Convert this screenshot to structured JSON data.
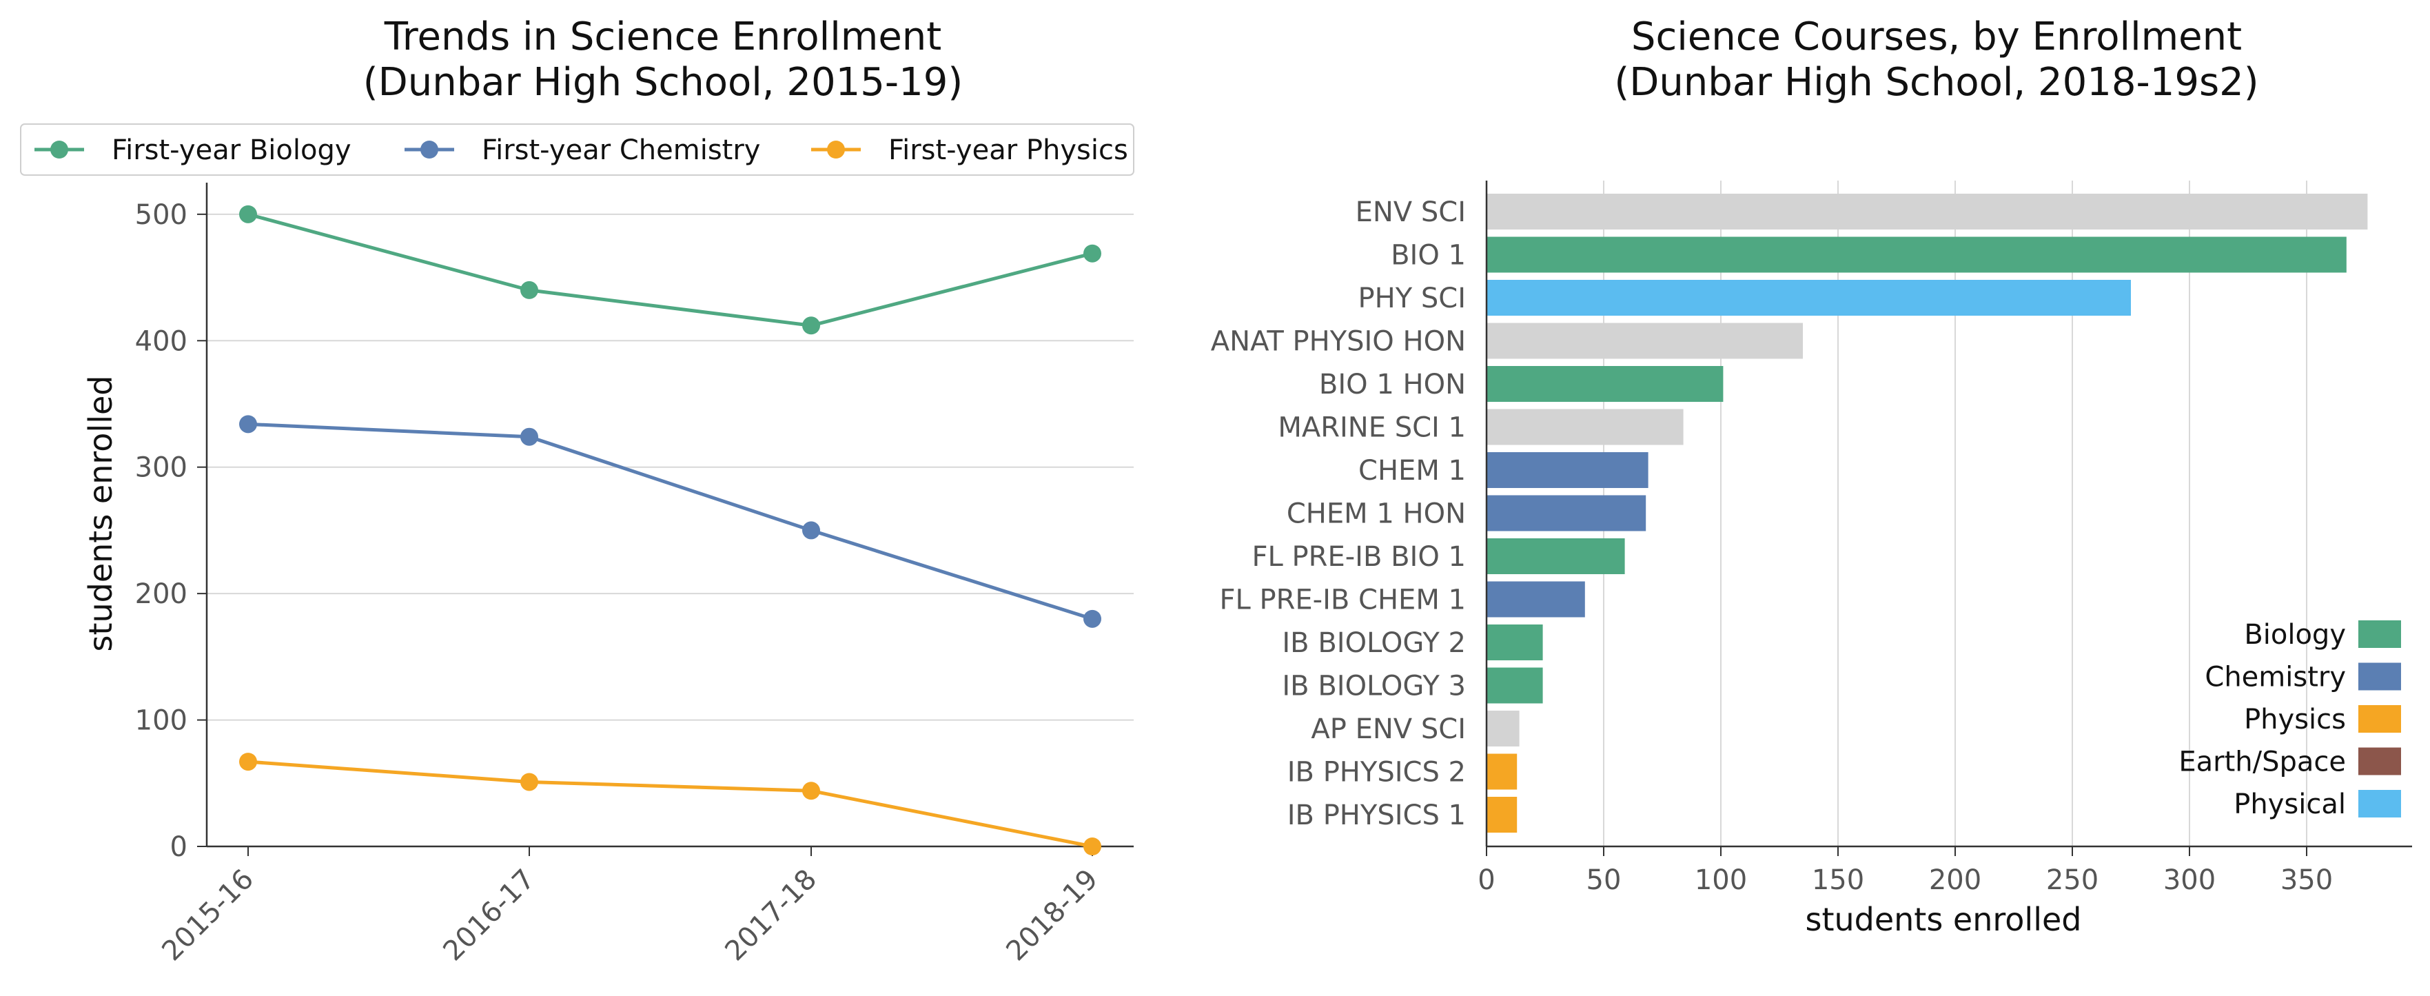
{
  "chart_data": [
    {
      "type": "line",
      "title_line1": "Trends in Science Enrollment",
      "title_line2": "(Dunbar High School, 2015-19)",
      "xlabel": "",
      "ylabel": "students enrolled",
      "categories": [
        "2015-16",
        "2016-17",
        "2017-18",
        "2018-19"
      ],
      "ylim": [
        0,
        525
      ],
      "yticks": [
        0,
        100,
        200,
        300,
        400,
        500
      ],
      "grid": "horizontal",
      "legend_position": "top",
      "series": [
        {
          "name": "First-year Biology",
          "color": "#4fa882",
          "values": [
            500,
            440,
            412,
            469
          ]
        },
        {
          "name": "First-year Chemistry",
          "color": "#5b7fb3",
          "values": [
            334,
            324,
            250,
            180
          ]
        },
        {
          "name": "First-year Physics",
          "color": "#f5a623",
          "values": [
            67,
            51,
            44,
            0
          ]
        }
      ]
    },
    {
      "type": "bar",
      "orientation": "horizontal",
      "title_line1": "Science Courses, by Enrollment",
      "title_line2": "(Dunbar High School, 2018-19s2)",
      "xlabel": "students enrolled",
      "ylabel": "",
      "xlim": [
        0,
        395
      ],
      "xticks": [
        0,
        50,
        100,
        150,
        200,
        250,
        300,
        350
      ],
      "grid": "vertical",
      "legend_position": "lower-right",
      "categories": [
        "ENV SCI",
        "BIO 1",
        "PHY SCI",
        "ANAT PHYSIO HON",
        "BIO 1 HON",
        "MARINE SCI 1",
        "CHEM 1",
        "CHEM 1 HON",
        "FL PRE-IB BIO 1",
        "FL PRE-IB CHEM 1",
        "IB BIOLOGY 2",
        "IB BIOLOGY 3",
        "AP ENV SCI",
        "IB PHYSICS 2",
        "IB PHYSICS 1"
      ],
      "values": [
        376,
        367,
        275,
        135,
        101,
        84,
        69,
        68,
        59,
        42,
        24,
        24,
        14,
        13,
        13
      ],
      "bar_groups": [
        "Other",
        "Biology",
        "Physical",
        "Other",
        "Biology",
        "Other",
        "Chemistry",
        "Chemistry",
        "Biology",
        "Chemistry",
        "Biology",
        "Biology",
        "Other",
        "Physics",
        "Physics"
      ],
      "group_colors": {
        "Biology": "#4fa882",
        "Chemistry": "#5b7fb3",
        "Physics": "#f5a623",
        "Earth/Space": "#8c564b",
        "Physical": "#5bbcf0",
        "Other": "#d3d3d3"
      },
      "legend": [
        "Biology",
        "Chemistry",
        "Physics",
        "Earth/Space",
        "Physical"
      ]
    }
  ]
}
